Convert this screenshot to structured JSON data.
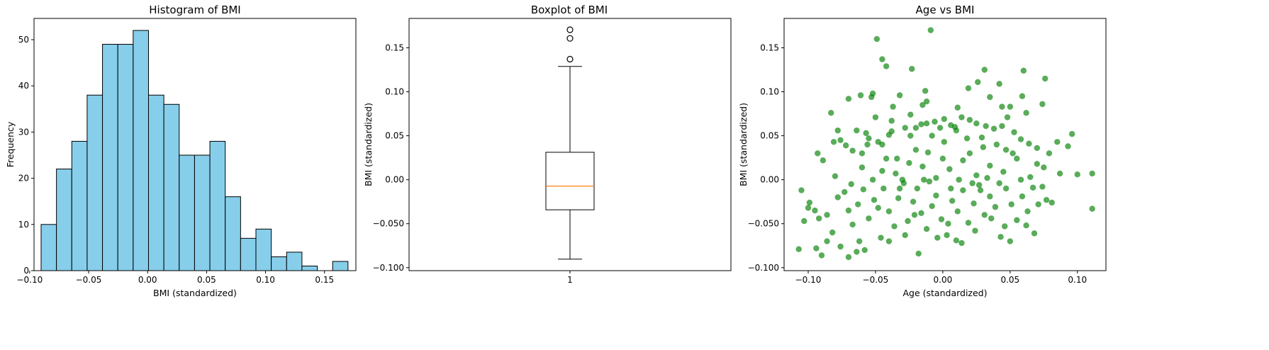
{
  "chart_data": [
    {
      "type": "histogram",
      "title": "Histogram of BMI",
      "xlabel": "BMI (standardized)",
      "ylabel": "Frequency",
      "xlim": [
        -0.0963,
        0.1766
      ],
      "ylim": [
        0,
        54.6
      ],
      "xticks": [
        -0.1,
        -0.05,
        0.0,
        0.05,
        0.1,
        0.15
      ],
      "xtick_labels": [
        "−0.10",
        "−0.05",
        "0.00",
        "0.05",
        "0.10",
        "0.15"
      ],
      "yticks": [
        0,
        10,
        20,
        30,
        40,
        50
      ],
      "ytick_labels": [
        "0",
        "10",
        "20",
        "30",
        "40",
        "50"
      ],
      "bin_start": -0.0903,
      "bin_width": 0.01301,
      "values": [
        10,
        22,
        28,
        38,
        49,
        49,
        52,
        38,
        36,
        25,
        25,
        28,
        16,
        7,
        9,
        3,
        4,
        1,
        0,
        2
      ],
      "bar_color": "#87CEEB",
      "edge_color": "#000000"
    },
    {
      "type": "box",
      "title": "Boxplot of BMI",
      "ylabel": "BMI (standardized)",
      "categories": [
        "1"
      ],
      "ylim": [
        -0.1034,
        0.1834
      ],
      "yticks": [
        -0.1,
        -0.05,
        0.0,
        0.05,
        0.1,
        0.15
      ],
      "ytick_labels": [
        "−0.100",
        "−0.050",
        "0.00",
        "0.05",
        "0.10",
        "0.15"
      ],
      "box": {
        "whisker_low": -0.0903,
        "q1": -0.0342,
        "median": -0.0073,
        "q3": 0.0312,
        "whisker_high": 0.1288
      },
      "outliers": [
        0.1371,
        0.1607,
        0.1705
      ],
      "median_color": "#ff7f0e"
    },
    {
      "type": "scatter",
      "title": "Age vs BMI",
      "xlabel": "Age (standardized)",
      "ylabel": "BMI (standardized)",
      "xlim": [
        -0.1179,
        0.1212
      ],
      "ylim": [
        -0.1034,
        0.1834
      ],
      "xticks": [
        -0.1,
        -0.05,
        0.0,
        0.05,
        0.1
      ],
      "xtick_labels": [
        "−0.10",
        "−0.05",
        "0.00",
        "0.05",
        "0.10"
      ],
      "yticks": [
        -0.1,
        -0.05,
        0.0,
        0.05,
        0.1,
        0.15
      ],
      "ytick_labels": [
        "−0.100",
        "−0.050",
        "0.00",
        "0.05",
        "0.10",
        "0.15"
      ],
      "point_color": "#008000",
      "point_alpha": 0.65,
      "points": [
        [
          -0.049,
          0.16
        ],
        [
          -0.009,
          0.17
        ],
        [
          -0.045,
          0.137
        ],
        [
          -0.042,
          0.129
        ],
        [
          -0.023,
          0.126
        ],
        [
          0.031,
          0.125
        ],
        [
          0.06,
          0.124
        ],
        [
          -0.083,
          0.076
        ],
        [
          0.076,
          0.115
        ],
        [
          0.026,
          0.111
        ],
        [
          0.042,
          0.109
        ],
        [
          -0.078,
          0.056
        ],
        [
          -0.07,
          0.092
        ],
        [
          -0.061,
          0.096
        ],
        [
          -0.052,
          0.098
        ],
        [
          -0.053,
          0.094
        ],
        [
          -0.013,
          0.101
        ],
        [
          -0.012,
          0.089
        ],
        [
          0.035,
          0.094
        ],
        [
          0.019,
          0.104
        ],
        [
          0.074,
          0.086
        ],
        [
          0.05,
          0.083
        ],
        [
          0.062,
          0.076
        ],
        [
          0.059,
          0.095
        ],
        [
          0.044,
          0.083
        ],
        [
          -0.032,
          0.096
        ],
        [
          -0.037,
          0.083
        ],
        [
          -0.015,
          0.085
        ],
        [
          0.011,
          0.082
        ],
        [
          0.001,
          0.069
        ],
        [
          -0.093,
          0.03
        ],
        [
          -0.089,
          0.022
        ],
        [
          -0.081,
          0.043
        ],
        [
          -0.076,
          0.045
        ],
        [
          -0.072,
          0.039
        ],
        [
          -0.067,
          0.033
        ],
        [
          -0.064,
          0.056
        ],
        [
          -0.06,
          0.03
        ],
        [
          -0.057,
          0.053
        ],
        [
          -0.055,
          0.047
        ],
        [
          -0.05,
          0.071
        ],
        [
          -0.048,
          0.043
        ],
        [
          -0.045,
          0.04
        ],
        [
          -0.04,
          0.051
        ],
        [
          -0.038,
          0.067
        ],
        [
          -0.034,
          0.024
        ],
        [
          -0.028,
          0.059
        ],
        [
          -0.024,
          0.074
        ],
        [
          -0.02,
          0.059
        ],
        [
          -0.016,
          0.063
        ],
        [
          -0.012,
          0.064
        ],
        [
          -0.006,
          0.066
        ],
        [
          -0.002,
          0.059
        ],
        [
          0.006,
          0.062
        ],
        [
          0.01,
          0.056
        ],
        [
          0.014,
          0.071
        ],
        [
          0.02,
          0.068
        ],
        [
          0.025,
          0.064
        ],
        [
          0.032,
          0.061
        ],
        [
          0.038,
          0.058
        ],
        [
          0.044,
          0.061
        ],
        [
          0.048,
          0.071
        ],
        [
          0.053,
          0.054
        ],
        [
          0.058,
          0.046
        ],
        [
          0.064,
          0.041
        ],
        [
          0.07,
          0.036
        ],
        [
          0.079,
          0.03
        ],
        [
          0.085,
          0.043
        ],
        [
          0.093,
          0.038
        ],
        [
          0.096,
          0.052
        ],
        [
          -0.105,
          -0.012
        ],
        [
          -0.099,
          -0.026
        ],
        [
          -0.095,
          -0.035
        ],
        [
          -0.092,
          -0.044
        ],
        [
          -0.086,
          -0.04
        ],
        [
          -0.082,
          -0.06
        ],
        [
          -0.078,
          -0.02
        ],
        [
          -0.073,
          -0.014
        ],
        [
          -0.07,
          -0.035
        ],
        [
          -0.067,
          -0.051
        ],
        [
          -0.063,
          -0.028
        ],
        [
          -0.059,
          -0.011
        ],
        [
          -0.055,
          -0.044
        ],
        [
          -0.051,
          -0.023
        ],
        [
          -0.048,
          -0.032
        ],
        [
          -0.044,
          -0.01
        ],
        [
          -0.04,
          -0.036
        ],
        [
          -0.036,
          -0.053
        ],
        [
          -0.033,
          -0.021
        ],
        [
          -0.029,
          -0.004
        ],
        [
          -0.026,
          -0.047
        ],
        [
          -0.022,
          -0.025
        ],
        [
          -0.019,
          -0.01
        ],
        [
          -0.016,
          -0.038
        ],
        [
          -0.012,
          -0.056
        ],
        [
          -0.008,
          -0.03
        ],
        [
          -0.005,
          -0.018
        ],
        [
          -0.001,
          -0.045
        ],
        [
          0.003,
          -0.063
        ],
        [
          0.007,
          -0.024
        ],
        [
          0.011,
          -0.036
        ],
        [
          0.015,
          -0.012
        ],
        [
          0.019,
          -0.049
        ],
        [
          0.023,
          -0.027
        ],
        [
          0.027,
          -0.006
        ],
        [
          0.031,
          -0.04
        ],
        [
          0.035,
          -0.019
        ],
        [
          0.039,
          -0.031
        ],
        [
          0.043,
          -0.065
        ],
        [
          0.047,
          -0.01
        ],
        [
          0.051,
          -0.028
        ],
        [
          0.055,
          -0.046
        ],
        [
          0.059,
          -0.019
        ],
        [
          0.063,
          -0.036
        ],
        [
          0.067,
          -0.009
        ],
        [
          0.071,
          -0.028
        ],
        [
          0.077,
          -0.023
        ],
        [
          0.081,
          -0.026
        ],
        [
          -0.094,
          -0.078
        ],
        [
          -0.09,
          -0.086
        ],
        [
          -0.086,
          -0.07
        ],
        [
          -0.076,
          -0.076
        ],
        [
          -0.07,
          -0.088
        ],
        [
          -0.064,
          -0.082
        ],
        [
          -0.058,
          -0.08
        ],
        [
          -0.046,
          -0.066
        ],
        [
          -0.04,
          -0.07
        ],
        [
          -0.028,
          -0.063
        ],
        [
          -0.018,
          -0.084
        ],
        [
          -0.004,
          -0.066
        ],
        [
          0.01,
          -0.069
        ],
        [
          0.024,
          -0.058
        ],
        [
          0.046,
          -0.053
        ],
        [
          0.068,
          -0.061
        ],
        [
          -0.045,
          0.01
        ],
        [
          -0.035,
          0.007
        ],
        [
          -0.025,
          0.019
        ],
        [
          -0.015,
          0.015
        ],
        [
          -0.005,
          0.002
        ],
        [
          0.005,
          0.012
        ],
        [
          0.015,
          0.022
        ],
        [
          0.025,
          0.005
        ],
        [
          0.035,
          0.016
        ],
        [
          0.045,
          0.009
        ],
        [
          0.055,
          0.024
        ],
        [
          0.065,
          0.003
        ],
        [
          0.075,
          0.014
        ],
        [
          0.1,
          0.006
        ],
        [
          0.111,
          0.007
        ],
        [
          -0.01,
          -0.002
        ],
        [
          0.0,
          0.024
        ],
        [
          0.012,
          0.0
        ],
        [
          0.022,
          -0.004
        ],
        [
          0.033,
          0.002
        ],
        [
          -0.03,
          0.0
        ],
        [
          -0.052,
          0.0
        ],
        [
          0.058,
          0.0
        ],
        [
          0.111,
          -0.033
        ],
        [
          -0.02,
          0.034
        ],
        [
          0.03,
          0.037
        ],
        [
          0.001,
          0.043
        ],
        [
          -0.008,
          0.05
        ],
        [
          0.018,
          0.047
        ],
        [
          0.04,
          0.04
        ],
        [
          -0.06,
          0.014
        ],
        [
          -0.068,
          -0.005
        ],
        [
          -0.08,
          0.004
        ],
        [
          0.087,
          0.007
        ],
        [
          0.074,
          -0.008
        ],
        [
          -0.1,
          -0.032
        ],
        [
          -0.107,
          -0.079
        ],
        [
          -0.103,
          -0.047
        ],
        [
          -0.062,
          -0.07
        ],
        [
          0.05,
          -0.07
        ],
        [
          -0.021,
          -0.04
        ],
        [
          0.004,
          -0.05
        ],
        [
          0.014,
          -0.072
        ],
        [
          0.036,
          -0.044
        ],
        [
          0.062,
          -0.052
        ],
        [
          -0.032,
          -0.01
        ],
        [
          -0.014,
          0.0
        ],
        [
          0.006,
          -0.01
        ],
        [
          0.028,
          -0.012
        ],
        [
          0.042,
          -0.004
        ],
        [
          -0.042,
          0.024
        ],
        [
          -0.056,
          0.04
        ],
        [
          0.02,
          0.03
        ],
        [
          0.052,
          0.03
        ],
        [
          0.07,
          0.018
        ],
        [
          -0.024,
          0.05
        ],
        [
          0.009,
          0.06
        ],
        [
          -0.038,
          0.055
        ],
        [
          0.029,
          0.048
        ],
        [
          0.047,
          0.034
        ],
        [
          -0.011,
          0.031
        ]
      ]
    }
  ]
}
